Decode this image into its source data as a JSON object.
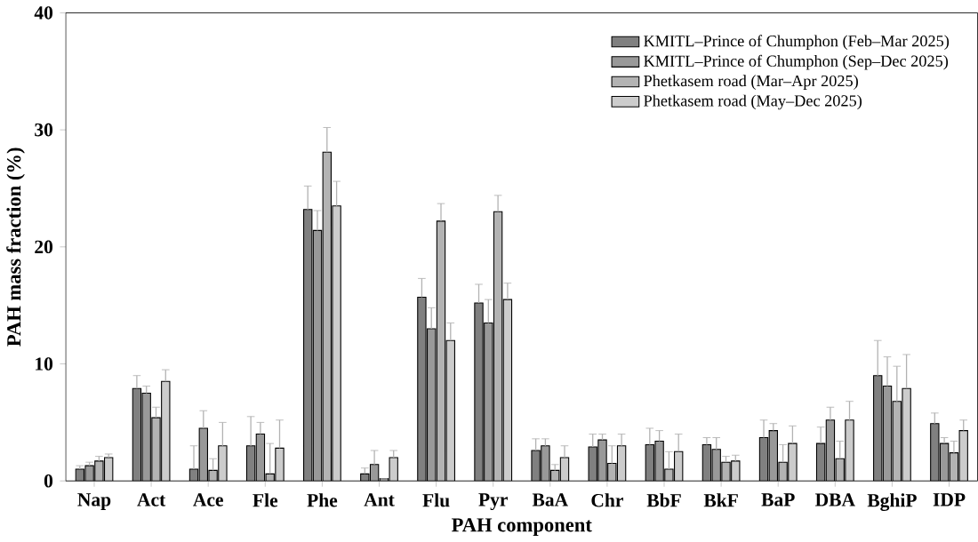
{
  "chart_data": {
    "type": "bar",
    "xlabel": "PAH component",
    "ylabel": "PAH mass fraction (%)",
    "categories": [
      "Nap",
      "Act",
      "Ace",
      "Fle",
      "Phe",
      "Ant",
      "Flu",
      "Pyr",
      "BaA",
      "Chr",
      "BbF",
      "BkF",
      "BaP",
      "DBA",
      "BghiP",
      "IDP"
    ],
    "ylim": [
      0,
      40
    ],
    "yticks": [
      0,
      10,
      20,
      30,
      40
    ],
    "legend": "top right",
    "series": [
      {
        "name": "KMITL–Prince of Chumphon  (Feb–Mar 2025)",
        "color": "#808080",
        "values": [
          1.0,
          7.9,
          1.0,
          3.0,
          23.2,
          0.6,
          15.7,
          15.2,
          2.6,
          2.9,
          3.1,
          3.1,
          3.7,
          3.2,
          9.0,
          4.9
        ],
        "errors": [
          0.3,
          1.1,
          2.0,
          2.5,
          2.0,
          0.5,
          1.6,
          1.6,
          1.0,
          1.1,
          1.4,
          0.6,
          1.5,
          1.4,
          3.0,
          0.9
        ]
      },
      {
        "name": "KMITL–Prince of Chumphon  (Sep–Dec 2025)",
        "color": "#999999",
        "values": [
          1.3,
          7.5,
          4.5,
          4.0,
          21.4,
          1.4,
          13.0,
          13.5,
          3.0,
          3.5,
          3.4,
          2.7,
          4.3,
          5.2,
          8.1,
          3.2
        ],
        "errors": [
          0.3,
          0.6,
          1.5,
          1.0,
          1.7,
          1.2,
          1.8,
          2.0,
          0.6,
          0.5,
          0.9,
          1.0,
          0.6,
          1.1,
          2.5,
          0.5
        ]
      },
      {
        "name": "Phetkasem road (Mar–Apr 2025)",
        "color": "#b3b3b3",
        "values": [
          1.7,
          5.4,
          0.9,
          0.6,
          28.1,
          0.2,
          22.2,
          23.0,
          0.9,
          1.5,
          1.0,
          1.6,
          1.6,
          1.9,
          6.8,
          2.4
        ],
        "errors": [
          0.4,
          0.9,
          1.0,
          2.6,
          2.1,
          null,
          1.5,
          1.4,
          0.5,
          1.5,
          1.5,
          0.5,
          1.5,
          1.5,
          3.0,
          1.0
        ]
      },
      {
        "name": "Phetkasem road (May–Dec 2025)",
        "color": "#cccccc",
        "values": [
          2.0,
          8.5,
          3.0,
          2.8,
          23.5,
          2.0,
          12.0,
          15.5,
          2.0,
          3.0,
          2.5,
          1.7,
          3.2,
          5.2,
          7.9,
          4.3
        ],
        "errors": [
          0.3,
          1.0,
          2.0,
          2.4,
          2.1,
          0.6,
          1.5,
          1.4,
          1.0,
          1.0,
          1.5,
          0.5,
          1.5,
          1.6,
          2.9,
          0.9
        ]
      }
    ]
  }
}
